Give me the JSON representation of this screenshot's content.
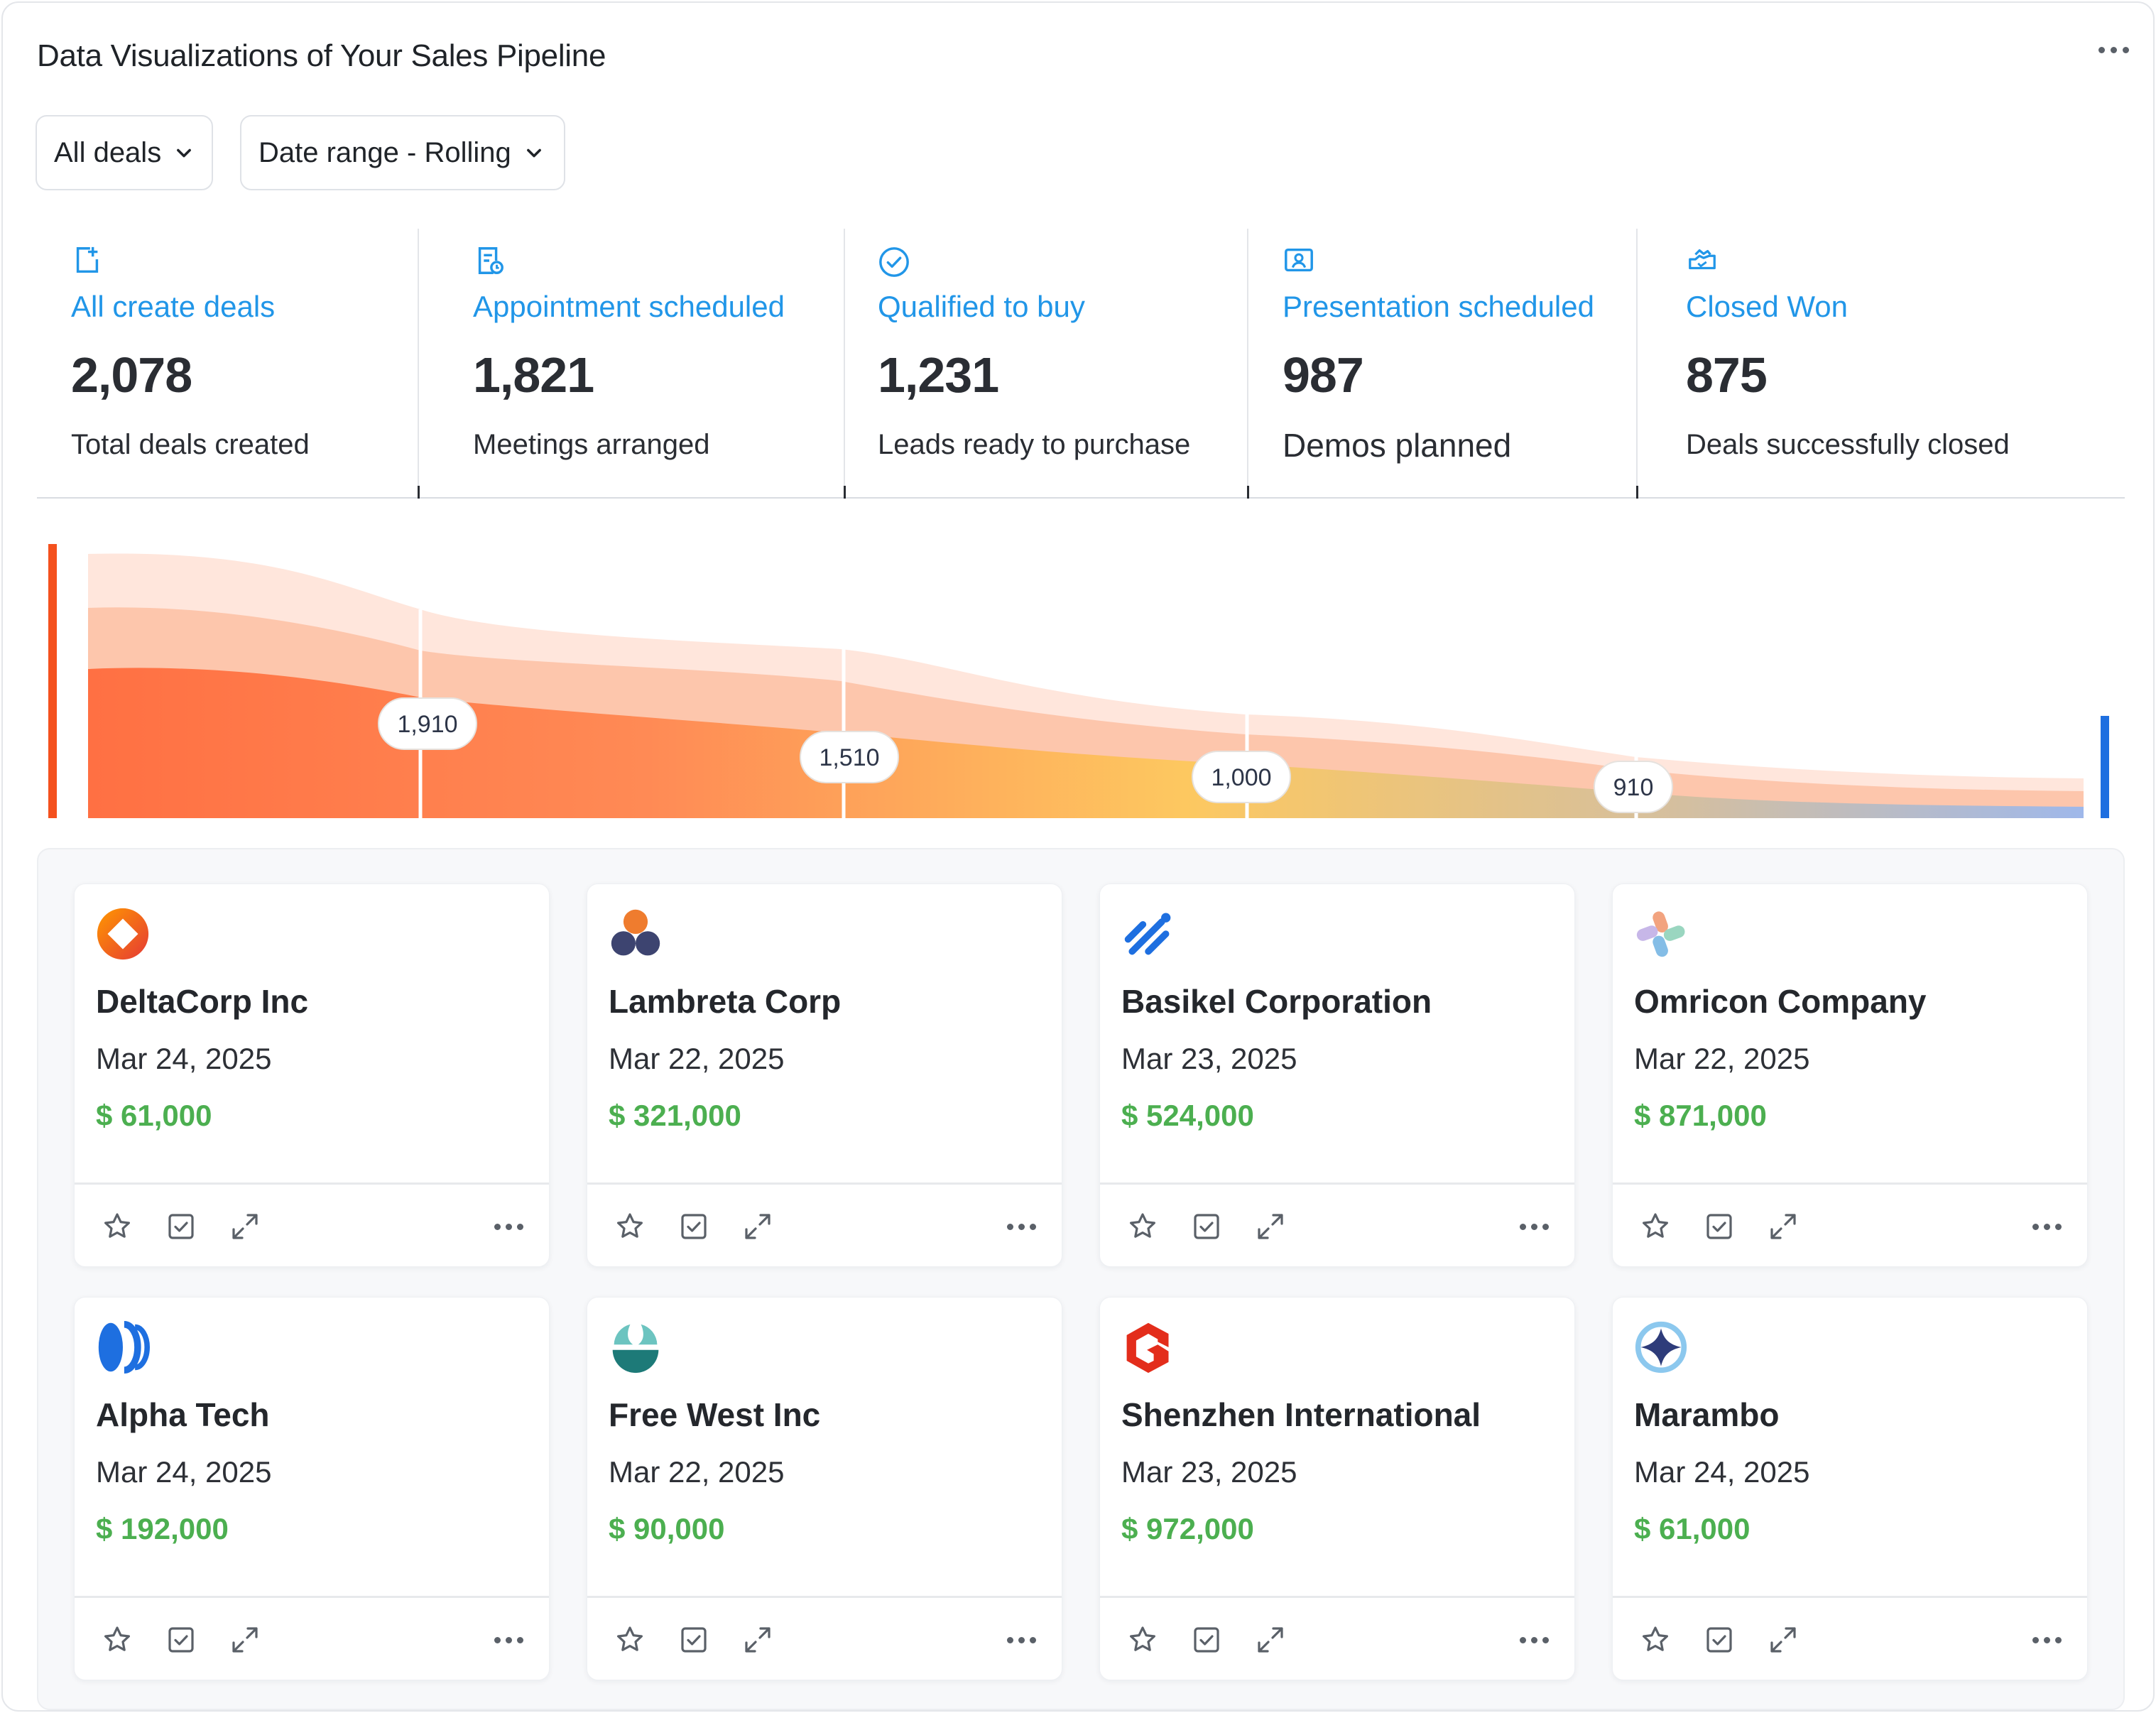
{
  "header": {
    "title": "Data Visualizations of Your Sales Pipeline",
    "menu_icon": "more-horizontal-icon"
  },
  "filters": [
    {
      "label": "All deals",
      "icon": "chevron-down-icon"
    },
    {
      "label": "Date range - Rolling",
      "icon": "chevron-down-icon"
    }
  ],
  "stages": [
    {
      "icon": "add-document-icon",
      "label": "All create deals",
      "value": "2,078",
      "desc": "Total deals created"
    },
    {
      "icon": "schedule-document-icon",
      "label": "Appointment scheduled",
      "value": "1,821",
      "desc": "Meetings arranged"
    },
    {
      "icon": "check-circle-icon",
      "label": "Qualified to buy",
      "value": "1,231",
      "desc": "Leads ready to purchase"
    },
    {
      "icon": "presentation-icon",
      "label": "Presentation scheduled",
      "value": "987",
      "desc": "Demos planned"
    },
    {
      "icon": "handshake-icon",
      "label": "Closed Won",
      "value": "875",
      "desc": "Deals successfully closed"
    }
  ],
  "chart_data": {
    "type": "area",
    "markers": [
      1910,
      1510,
      1000,
      910
    ],
    "marker_labels": [
      "1,910",
      "1,510",
      "1,000",
      "910"
    ],
    "colors": {
      "start": "#ff7043",
      "mid": "#fdc860",
      "end": "#9fb8ea",
      "left_bar": "#f4511e",
      "right_bar": "#1e6fe0"
    }
  },
  "deals": [
    {
      "name": "DeltaCorp Inc",
      "date": "Mar 24, 2025",
      "amount": "$ 61,000",
      "logo": "deltacorp-logo"
    },
    {
      "name": "Lambreta Corp",
      "date": "Mar 22, 2025",
      "amount": "$ 321,000",
      "logo": "lambreta-logo"
    },
    {
      "name": "Basikel Corporation",
      "date": "Mar 23, 2025",
      "amount": "$ 524,000",
      "logo": "basikel-logo"
    },
    {
      "name": "Omricon Company",
      "date": "Mar 22, 2025",
      "amount": "$ 871,000",
      "logo": "omricon-logo"
    },
    {
      "name": "Alpha Tech",
      "date": "Mar 24, 2025",
      "amount": "$ 192,000",
      "logo": "alphatech-logo"
    },
    {
      "name": "Free West Inc",
      "date": "Mar 22, 2025",
      "amount": "$ 90,000",
      "logo": "freewest-logo"
    },
    {
      "name": "Shenzhen International",
      "date": "Mar 23, 2025",
      "amount": "$ 972,000",
      "logo": "shenzhen-logo"
    },
    {
      "name": "Marambo",
      "date": "Mar 24, 2025",
      "amount": "$ 61,000",
      "logo": "marambo-logo"
    }
  ],
  "card_actions": [
    "star-icon",
    "checkbox-icon",
    "expand-icon",
    "more-horizontal-icon"
  ]
}
